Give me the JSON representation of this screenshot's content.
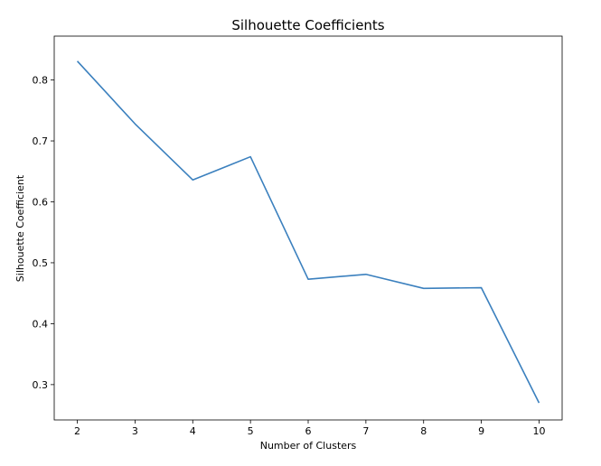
{
  "chart_data": {
    "type": "line",
    "title": "Silhouette Coefficients",
    "xlabel": "Number of Clusters",
    "ylabel": "Silhouette Coefficient",
    "x": [
      2,
      3,
      4,
      5,
      6,
      7,
      8,
      9,
      10
    ],
    "series": [
      {
        "values": [
          0.831,
          0.728,
          0.636,
          0.674,
          0.473,
          0.481,
          0.458,
          0.459,
          0.27
        ],
        "color": "#3b80be"
      }
    ],
    "xlim": [
      1.6,
      10.4
    ],
    "ylim": [
      0.242,
      0.872
    ],
    "xticks": [
      2,
      3,
      4,
      5,
      6,
      7,
      8,
      9,
      10
    ],
    "yticks": [
      0.3,
      0.4,
      0.5,
      0.6,
      0.7,
      0.8
    ],
    "ytick_labels": [
      "0.3",
      "0.4",
      "0.5",
      "0.6",
      "0.7",
      "0.8"
    ],
    "grid": false
  }
}
